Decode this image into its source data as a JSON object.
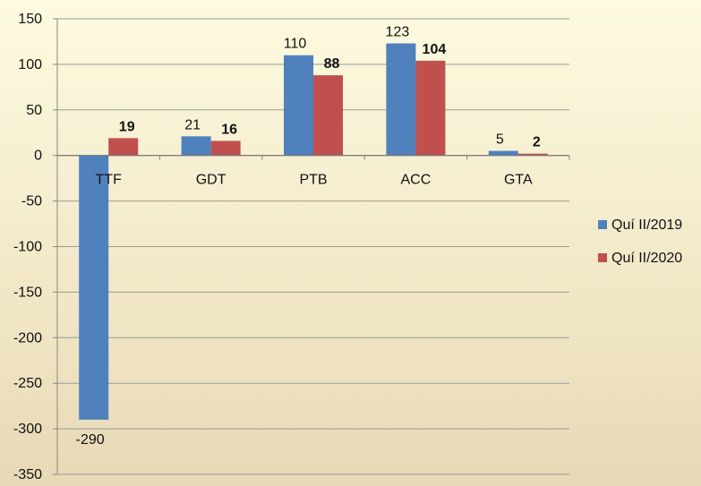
{
  "chart_data": {
    "type": "bar",
    "categories": [
      "TTF",
      "GDT",
      "PTB",
      "ACC",
      "GTA"
    ],
    "series": [
      {
        "name": "Quí II/2019",
        "values": [
          -290,
          21,
          110,
          123,
          5
        ],
        "color": "#4f81bd"
      },
      {
        "name": "Quí II/2020",
        "values": [
          19,
          16,
          88,
          104,
          2
        ],
        "color": "#c0504d"
      }
    ],
    "ylim": [
      -350,
      150
    ],
    "yticks": [
      150,
      100,
      50,
      0,
      -50,
      -100,
      -150,
      -200,
      -250,
      -300,
      -350
    ],
    "grid": true,
    "legend_position": "right"
  }
}
